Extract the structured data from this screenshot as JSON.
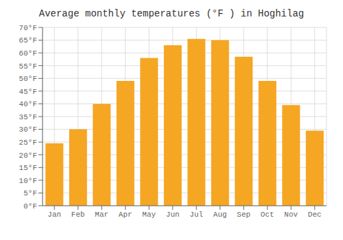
{
  "chart_data": {
    "type": "bar",
    "title": "Average monthly temperatures (°F ) in Hoghilag",
    "categories": [
      "Jan",
      "Feb",
      "Mar",
      "Apr",
      "May",
      "Jun",
      "Jul",
      "Aug",
      "Sep",
      "Oct",
      "Nov",
      "Dec"
    ],
    "values": [
      24.5,
      30,
      40,
      49,
      58,
      63,
      65.5,
      65,
      58.5,
      49,
      39.5,
      29.5
    ],
    "color": "#F5A623",
    "ylim": [
      0,
      70
    ],
    "yticks": [
      {
        "value": 0,
        "label": "0°F"
      },
      {
        "value": 5,
        "label": "5°F"
      },
      {
        "value": 10,
        "label": "10°F"
      },
      {
        "value": 15,
        "label": "15°F"
      },
      {
        "value": 20,
        "label": "20°F"
      },
      {
        "value": 25,
        "label": "25°F"
      },
      {
        "value": 30,
        "label": "30°F"
      },
      {
        "value": 35,
        "label": "35°F"
      },
      {
        "value": 40,
        "label": "40°F"
      },
      {
        "value": 45,
        "label": "45°F"
      },
      {
        "value": 50,
        "label": "50°F"
      },
      {
        "value": 55,
        "label": "55°F"
      },
      {
        "value": 60,
        "label": "60°F"
      },
      {
        "value": 65,
        "label": "65°F"
      },
      {
        "value": 70,
        "label": "70°F"
      }
    ],
    "grid": true
  }
}
